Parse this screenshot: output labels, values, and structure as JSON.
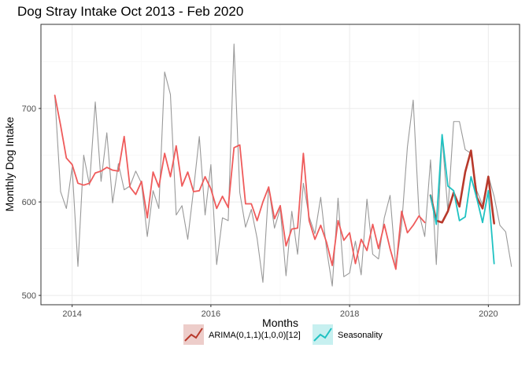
{
  "chart_data": {
    "type": "line",
    "title": "Dog Stray Intake Oct 2013 - Feb 2020",
    "xlabel": "Months",
    "ylabel": "Monthly Dog Intake",
    "xlim": [
      2013.55,
      2020.45
    ],
    "ylim": [
      490,
      790
    ],
    "xticks": [
      2014,
      2016,
      2018,
      2020
    ],
    "xtick_labels": [
      "2014",
      "2016",
      "2018",
      "2020"
    ],
    "yticks": [
      500,
      600,
      700
    ],
    "ytick_labels": [
      "500",
      "600",
      "700"
    ],
    "grid": true,
    "legend_position": "bottom",
    "colors": {
      "actual": "#999999",
      "fitted": "#ef5b5b",
      "arima": "#b8392b",
      "seasonality": "#1fc2c2",
      "panel_border": "#333333",
      "grid_major": "#ebebeb",
      "grid_minor": "#f5f5f5"
    },
    "series": [
      {
        "key": "actual",
        "x_start": 2013.75,
        "step": 0.0833333,
        "values": [
          714,
          611,
          593,
          637,
          531,
          650,
          618,
          707,
          622,
          674,
          599,
          641,
          613,
          617,
          633,
          620,
          563,
          612,
          593,
          739,
          715,
          586,
          596,
          560,
          613,
          670,
          586,
          640,
          533,
          583,
          580,
          769,
          610,
          573,
          592,
          561,
          514,
          616,
          572,
          593,
          521,
          590,
          544,
          620,
          584,
          566,
          605,
          550,
          510,
          604,
          520,
          524,
          558,
          522,
          603,
          544,
          539,
          583,
          607,
          530,
          575,
          659,
          709,
          588,
          563,
          645,
          533,
          670,
          590,
          686,
          686,
          656,
          652,
          612,
          597,
          628,
          606,
          575,
          568,
          531
        ]
      },
      {
        "key": "fitted",
        "x_start": 2013.75,
        "step": 0.0833333,
        "values": [
          714,
          682,
          647,
          640,
          620,
          618,
          620,
          631,
          633,
          637,
          634,
          633,
          670,
          616,
          608,
          622,
          583,
          632,
          616,
          652,
          627,
          660,
          617,
          632,
          611,
          612,
          627,
          614,
          593,
          606,
          594,
          658,
          661,
          598,
          598,
          580,
          600,
          616,
          582,
          596,
          553,
          571,
          572,
          652,
          580,
          560,
          575,
          557,
          532,
          580,
          559,
          567,
          534,
          560,
          548,
          576,
          550,
          576,
          550,
          528,
          590,
          567,
          575,
          585,
          578
        ]
      },
      {
        "key": "arima",
        "name": "ARIMA(0,1,1)(1,0,0)[12]",
        "x_start": 2019.1667,
        "step": 0.0833333,
        "values": [
          607,
          580,
          578,
          590,
          610,
          595,
          632,
          655,
          605,
          593,
          627,
          577
        ]
      },
      {
        "key": "seasonality",
        "name": "Seasonality",
        "x_start": 2019.1667,
        "step": 0.0833333,
        "values": [
          607,
          576,
          672,
          617,
          612,
          580,
          584,
          627,
          604,
          578,
          612,
          534
        ]
      }
    ]
  }
}
